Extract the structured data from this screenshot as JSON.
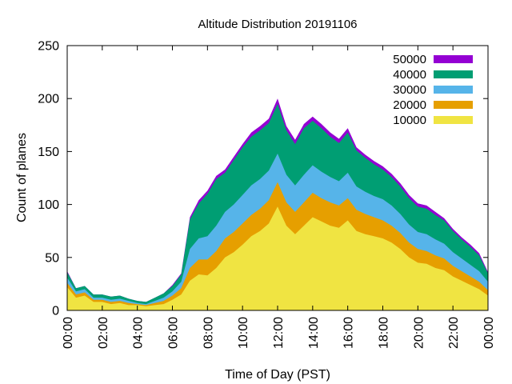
{
  "chart_data": {
    "type": "area",
    "stacked": true,
    "title": "Altitude Distribution 20191106",
    "xlabel": "Time of Day (PST)",
    "ylabel": "Count of planes",
    "xlim": [
      "00:00",
      "24:00"
    ],
    "ylim": [
      0,
      250
    ],
    "xticks": [
      "00:00",
      "02:00",
      "04:00",
      "06:00",
      "08:00",
      "10:00",
      "12:00",
      "14:00",
      "16:00",
      "18:00",
      "20:00",
      "22:00",
      "00:00"
    ],
    "yticks": [
      0,
      50,
      100,
      150,
      200,
      250
    ],
    "legend_position": "top-right",
    "grid": false,
    "x": [
      "00:00",
      "00:30",
      "01:00",
      "01:30",
      "02:00",
      "02:30",
      "03:00",
      "03:30",
      "04:00",
      "04:30",
      "05:00",
      "05:30",
      "06:00",
      "06:30",
      "07:00",
      "07:30",
      "08:00",
      "08:30",
      "09:00",
      "09:30",
      "10:00",
      "10:30",
      "11:00",
      "11:30",
      "12:00",
      "12:30",
      "13:00",
      "13:30",
      "14:00",
      "14:30",
      "15:00",
      "15:30",
      "16:00",
      "16:30",
      "17:00",
      "17:30",
      "18:00",
      "18:30",
      "19:00",
      "19:30",
      "20:00",
      "20:30",
      "21:00",
      "21:30",
      "22:00",
      "22:30",
      "23:00",
      "23:30",
      "24:00"
    ],
    "series": [
      {
        "name": "10000",
        "color": "#f0e442",
        "values": [
          22,
          12,
          14,
          8,
          8,
          6,
          7,
          5,
          5,
          4,
          5,
          6,
          10,
          15,
          28,
          34,
          33,
          40,
          50,
          55,
          62,
          70,
          75,
          82,
          98,
          80,
          72,
          80,
          88,
          84,
          80,
          78,
          85,
          75,
          72,
          70,
          68,
          64,
          58,
          50,
          45,
          44,
          40,
          38,
          32,
          28,
          24,
          20,
          14
        ]
      },
      {
        "name": "20000",
        "color": "#e69f00",
        "values": [
          4,
          3,
          3,
          2,
          2,
          2,
          2,
          2,
          1,
          1,
          2,
          3,
          4,
          6,
          12,
          14,
          15,
          16,
          18,
          19,
          20,
          20,
          21,
          22,
          23,
          22,
          21,
          22,
          23,
          22,
          22,
          21,
          21,
          20,
          19,
          18,
          17,
          16,
          15,
          14,
          13,
          12,
          12,
          11,
          10,
          9,
          8,
          7,
          5
        ]
      },
      {
        "name": "30000",
        "color": "#56b4e9",
        "values": [
          5,
          3,
          3,
          2,
          2,
          2,
          2,
          2,
          1,
          1,
          2,
          3,
          4,
          6,
          18,
          20,
          22,
          24,
          25,
          26,
          27,
          28,
          28,
          28,
          27,
          26,
          25,
          26,
          26,
          25,
          24,
          23,
          24,
          22,
          21,
          20,
          20,
          19,
          18,
          17,
          16,
          16,
          15,
          14,
          13,
          12,
          11,
          10,
          8
        ]
      },
      {
        "name": "40000",
        "color": "#009e73",
        "values": [
          5,
          3,
          3,
          3,
          3,
          3,
          3,
          2,
          2,
          2,
          3,
          4,
          5,
          7,
          28,
          33,
          40,
          44,
          37,
          42,
          45,
          46,
          46,
          45,
          47,
          42,
          39,
          44,
          42,
          41,
          38,
          36,
          38,
          34,
          32,
          30,
          28,
          27,
          26,
          25,
          24,
          24,
          23,
          22,
          20,
          18,
          17,
          15,
          8
        ]
      },
      {
        "name": "50000",
        "color": "#9400d3",
        "values": [
          1,
          0,
          0,
          0,
          0,
          0,
          0,
          0,
          0,
          0,
          0,
          0,
          1,
          1,
          2,
          3,
          3,
          3,
          3,
          3,
          3,
          4,
          4,
          4,
          5,
          4,
          4,
          4,
          4,
          4,
          4,
          4,
          4,
          3,
          3,
          3,
          3,
          3,
          3,
          3,
          3,
          3,
          3,
          2,
          2,
          2,
          2,
          2,
          1
        ]
      }
    ]
  }
}
